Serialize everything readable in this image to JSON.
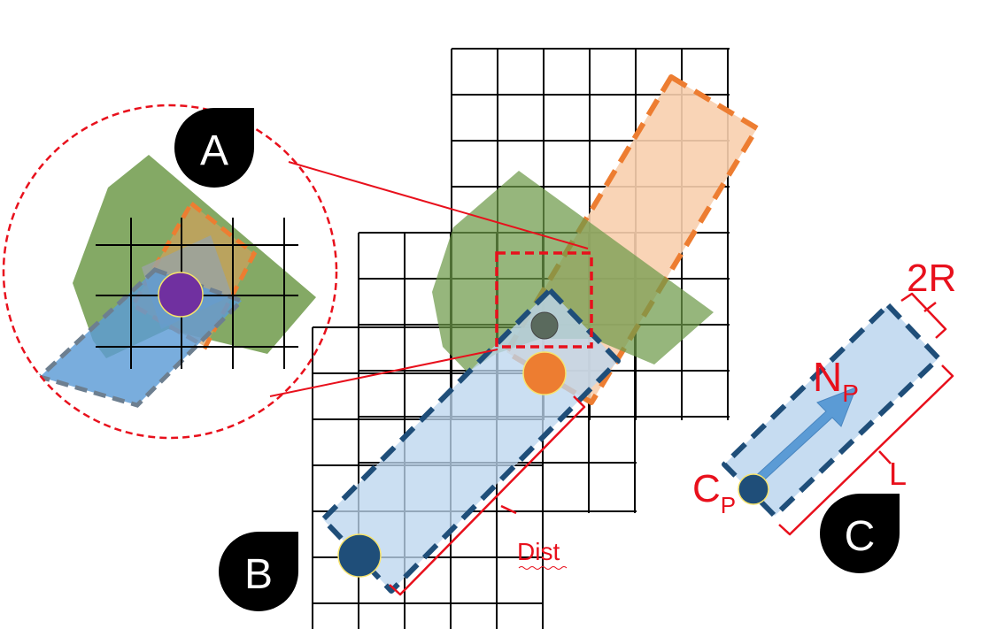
{
  "badges": {
    "a": "A",
    "b": "B",
    "c": "C"
  },
  "labels": {
    "dist": "Dist",
    "two_r": "2R",
    "length": "L",
    "normal_base": "N",
    "normal_sub": "P",
    "center_base": "C",
    "center_sub": "P"
  },
  "colors": {
    "grid": "#000000",
    "annotation_red": "#e8101c",
    "green_region": "#77a04f",
    "orange_cylinder_fill": "#f8cfae",
    "orange_cylinder_edge": "#ed7d31",
    "blue_cylinder_fill": "#bcd6ee",
    "blue_cylinder_edge": "#1f4e79",
    "arrow": "#5b9bd5",
    "purple_point": "#7030a0",
    "orange_point": "#ed7d31",
    "gray_point": "#5a6a5d",
    "badge": "#000000"
  }
}
